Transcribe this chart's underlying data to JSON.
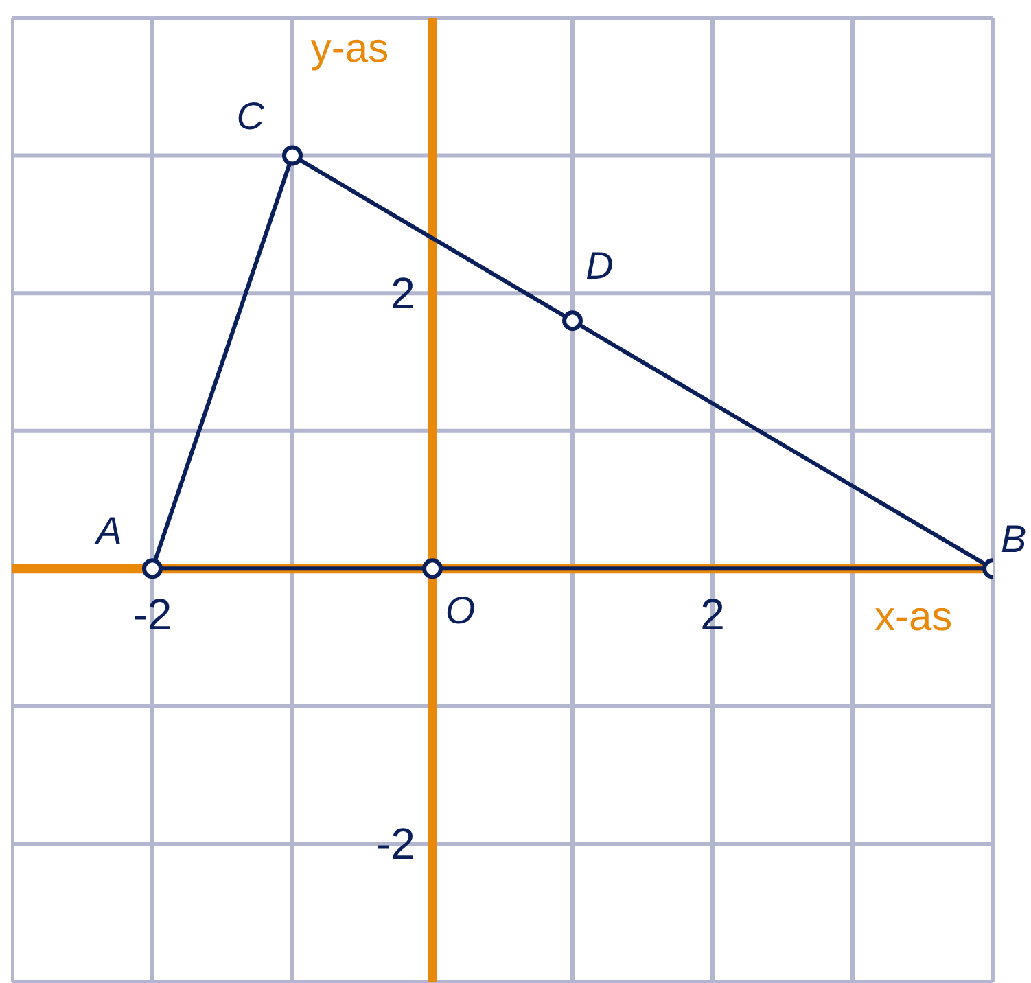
{
  "chart_data": {
    "type": "line",
    "xlabel": "x-as",
    "ylabel": "y-as",
    "xlim": [
      -3,
      4
    ],
    "ylim": [
      -3,
      4
    ],
    "xticks": [
      {
        "value": -3,
        "label": null
      },
      -2,
      {
        "value": -1,
        "label": null
      },
      {
        "value": 0,
        "label": null
      },
      {
        "value": 1,
        "label": null
      },
      2,
      {
        "value": 3,
        "label": null
      },
      {
        "value": 4,
        "label": null
      }
    ],
    "yticks": [
      {
        "value": -3,
        "label": null
      },
      -2,
      {
        "value": -1,
        "label": null
      },
      {
        "value": 0,
        "label": null
      },
      {
        "value": 1,
        "label": null
      },
      2,
      {
        "value": 3,
        "label": null
      },
      {
        "value": 4,
        "label": null
      }
    ],
    "grid": true,
    "marker": "circle",
    "line_style": "solid",
    "series": [
      {
        "type": "line",
        "color": "#0b1f5a",
        "x": [
          -2,
          -1,
          1,
          4
        ],
        "values": [
          0,
          3,
          1.8,
          0
        ]
      },
      {
        "type": "line",
        "color": "#0b1f5a",
        "marker": "none",
        "x": [
          -2,
          4
        ],
        "values": [
          0,
          0
        ]
      },
      {
        "type": "scatter",
        "color": "#0b1f5a",
        "x": [
          0
        ],
        "values": [
          0
        ]
      }
    ],
    "annotations": [
      {
        "text": "A",
        "x": -2,
        "y": 0
      },
      {
        "text": "B",
        "x": 4,
        "y": 0
      },
      {
        "text": "C",
        "x": -1,
        "y": 3
      },
      {
        "text": "D",
        "x": 1,
        "y": 1.8
      },
      {
        "text": "O",
        "x": 0,
        "y": 0
      }
    ]
  }
}
